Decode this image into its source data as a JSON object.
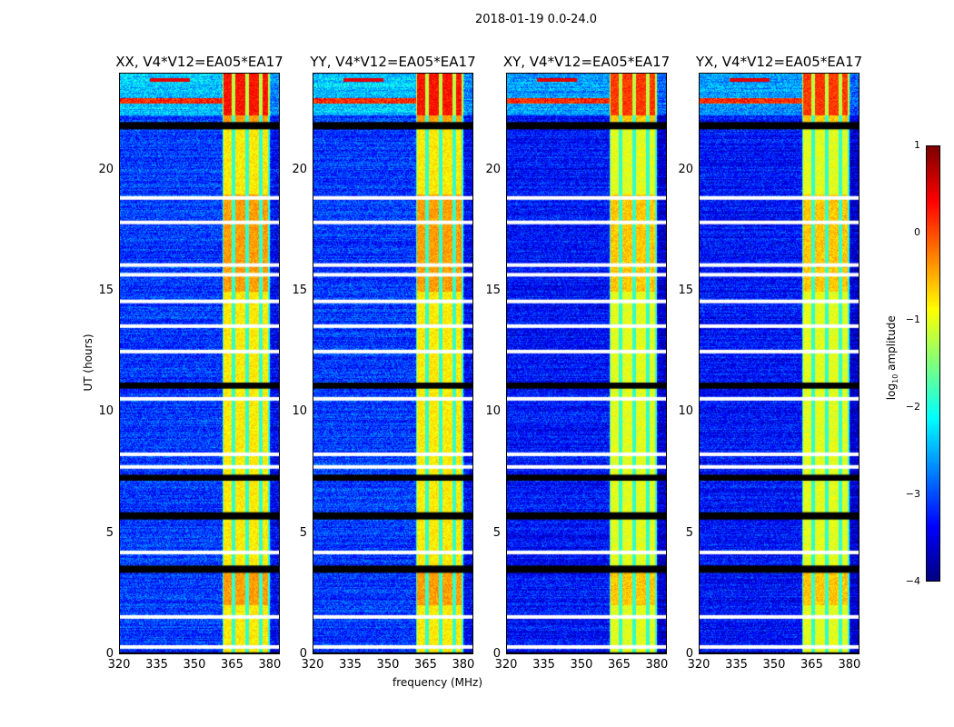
{
  "chart_data": {
    "type": "heatmap",
    "suptitle": "2018-01-19 0.0-24.0",
    "xlabel": "frequency (MHz)",
    "ylabel": "UT (hours)",
    "xlim": [
      320,
      384
    ],
    "ylim": [
      0,
      24
    ],
    "xticks": [
      "320",
      "335",
      "350",
      "365",
      "380"
    ],
    "xtick_values": [
      320,
      335,
      350,
      365,
      380
    ],
    "yticks": [
      "0",
      "5",
      "10",
      "15",
      "20"
    ],
    "ytick_values": [
      0,
      5,
      10,
      15,
      20
    ],
    "panels": [
      {
        "title": "XX, V4*V12=EA05*EA17",
        "level_offset": 0.0
      },
      {
        "title": "YY, V4*V12=EA05*EA17",
        "level_offset": 0.0
      },
      {
        "title": "XY, V4*V12=EA05*EA17",
        "level_offset": -0.2
      },
      {
        "title": "YX, V4*V12=EA05*EA17",
        "level_offset": -0.2
      }
    ],
    "rfi_band_mhz": [
      361,
      380
    ],
    "rfi_channel_edges_mhz": [
      361,
      365.5,
      371,
      376.5,
      380
    ],
    "strong_rfi_hours": [
      22.3,
      24
    ],
    "flagged_white_hours": [
      21.84,
      18.87,
      17.86,
      16.1,
      15.7,
      14.6,
      13.58,
      12.53,
      10.58,
      8.29,
      7.77,
      4.24,
      1.58,
      0.34
    ],
    "flagged_black_hours": [
      [
        21.7,
        22.0
      ],
      [
        11.0,
        11.25
      ],
      [
        7.2,
        7.45
      ],
      [
        5.6,
        5.9
      ],
      [
        3.4,
        3.7
      ],
      [
        0.0,
        0.12
      ]
    ],
    "colorbar": {
      "label": "log10 amplitude",
      "label_main": "log",
      "label_sub": "10",
      "label_rest": " amplitude",
      "colormap": "jet",
      "range": [
        -4,
        1
      ],
      "ticks": [
        "1",
        "0",
        "−1",
        "−2",
        "−3",
        "−4"
      ],
      "tick_values": [
        1,
        0,
        -1,
        -2,
        -3,
        -4
      ]
    }
  }
}
